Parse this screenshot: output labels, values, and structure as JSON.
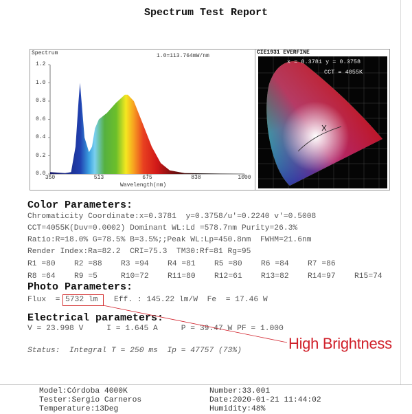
{
  "report": {
    "title": "Spectrum Test Report"
  },
  "spectrum_panel": {
    "label": "Spectrum",
    "scale_note": "1.0=113.764mW/nm",
    "x_label": "Wavelength(nm)",
    "x_ticks": [
      "350",
      "513",
      "675",
      "838",
      "1000"
    ],
    "y_ticks": [
      "0.0",
      "0.2",
      "0.4",
      "0.6",
      "0.8",
      "1.0",
      "1.2"
    ]
  },
  "chart_data": {
    "type": "area",
    "title": "Spectrum",
    "xlabel": "Wavelength(nm)",
    "ylabel": "",
    "xlim": [
      350,
      1000
    ],
    "ylim": [
      0,
      1.2
    ],
    "x": [
      350,
      400,
      420,
      435,
      445,
      450,
      455,
      465,
      480,
      490,
      500,
      513,
      540,
      570,
      600,
      610,
      630,
      660,
      690,
      720,
      750,
      800,
      1000
    ],
    "values": [
      0.02,
      0.01,
      0.02,
      0.3,
      0.8,
      1.0,
      0.8,
      0.4,
      0.24,
      0.3,
      0.5,
      0.6,
      0.67,
      0.78,
      0.87,
      0.87,
      0.8,
      0.55,
      0.3,
      0.12,
      0.04,
      0.01,
      0.0
    ]
  },
  "cie_panel": {
    "label": "CIE1931 EVERFINE",
    "coords": "x = 0.3781 y = 0.3758",
    "cct": "CCT = 4055K"
  },
  "color_parameters": {
    "heading": "Color Parameters:",
    "lines": [
      "Chromaticity Coordinate:x=0.3781  y=0.3758/u'=0.2240 v'=0.5008",
      "CCT=4055K(Duv=0.0002) Dominant WL:Ld =578.7nm Purity=26.3%",
      "Ratio:R=18.0% G=78.5% B=3.5%;;Peak WL:Lp=450.8nm  FWHM=21.6nm",
      "Render Index:Ra=82.2  CRI=75.3  TM30:Rf=81 Rg=95"
    ],
    "r_values": [
      "R1 =80",
      "R2 =88",
      "R3 =94",
      "R4 =81",
      "R5 =80",
      "R6 =84",
      "R7 =86",
      "R8 =64",
      "R9 =5",
      "R10=72",
      "R11=80",
      "R12=61",
      "R13=82",
      "R14=97",
      "R15=74"
    ]
  },
  "photo_parameters": {
    "heading": "Photo Parameters:",
    "flux_label": "Flux  =",
    "flux_value": "5732 lm",
    "rest": "Eff. : 145.22 lm/W  Fe  = 17.46 W"
  },
  "electrical_parameters": {
    "heading": "Electrical parameters:",
    "line": "V = 23.998 V     I = 1.645 A     P = 39.47 W PF = 1.000"
  },
  "status": "Status:  Integral T = 250 ms  Ip = 47757 (73%)",
  "annotation": {
    "text": "High Brightness",
    "color": "#d0202a"
  },
  "footer": {
    "model": "Model:Córdoba 4000K",
    "tester": "Tester:Sergio Carneros",
    "temperature": "Temperature:13Deg",
    "number": "Number:33.001",
    "date": "Date:2020-01-21 11:44:02",
    "humidity": "Humidity:48%"
  }
}
